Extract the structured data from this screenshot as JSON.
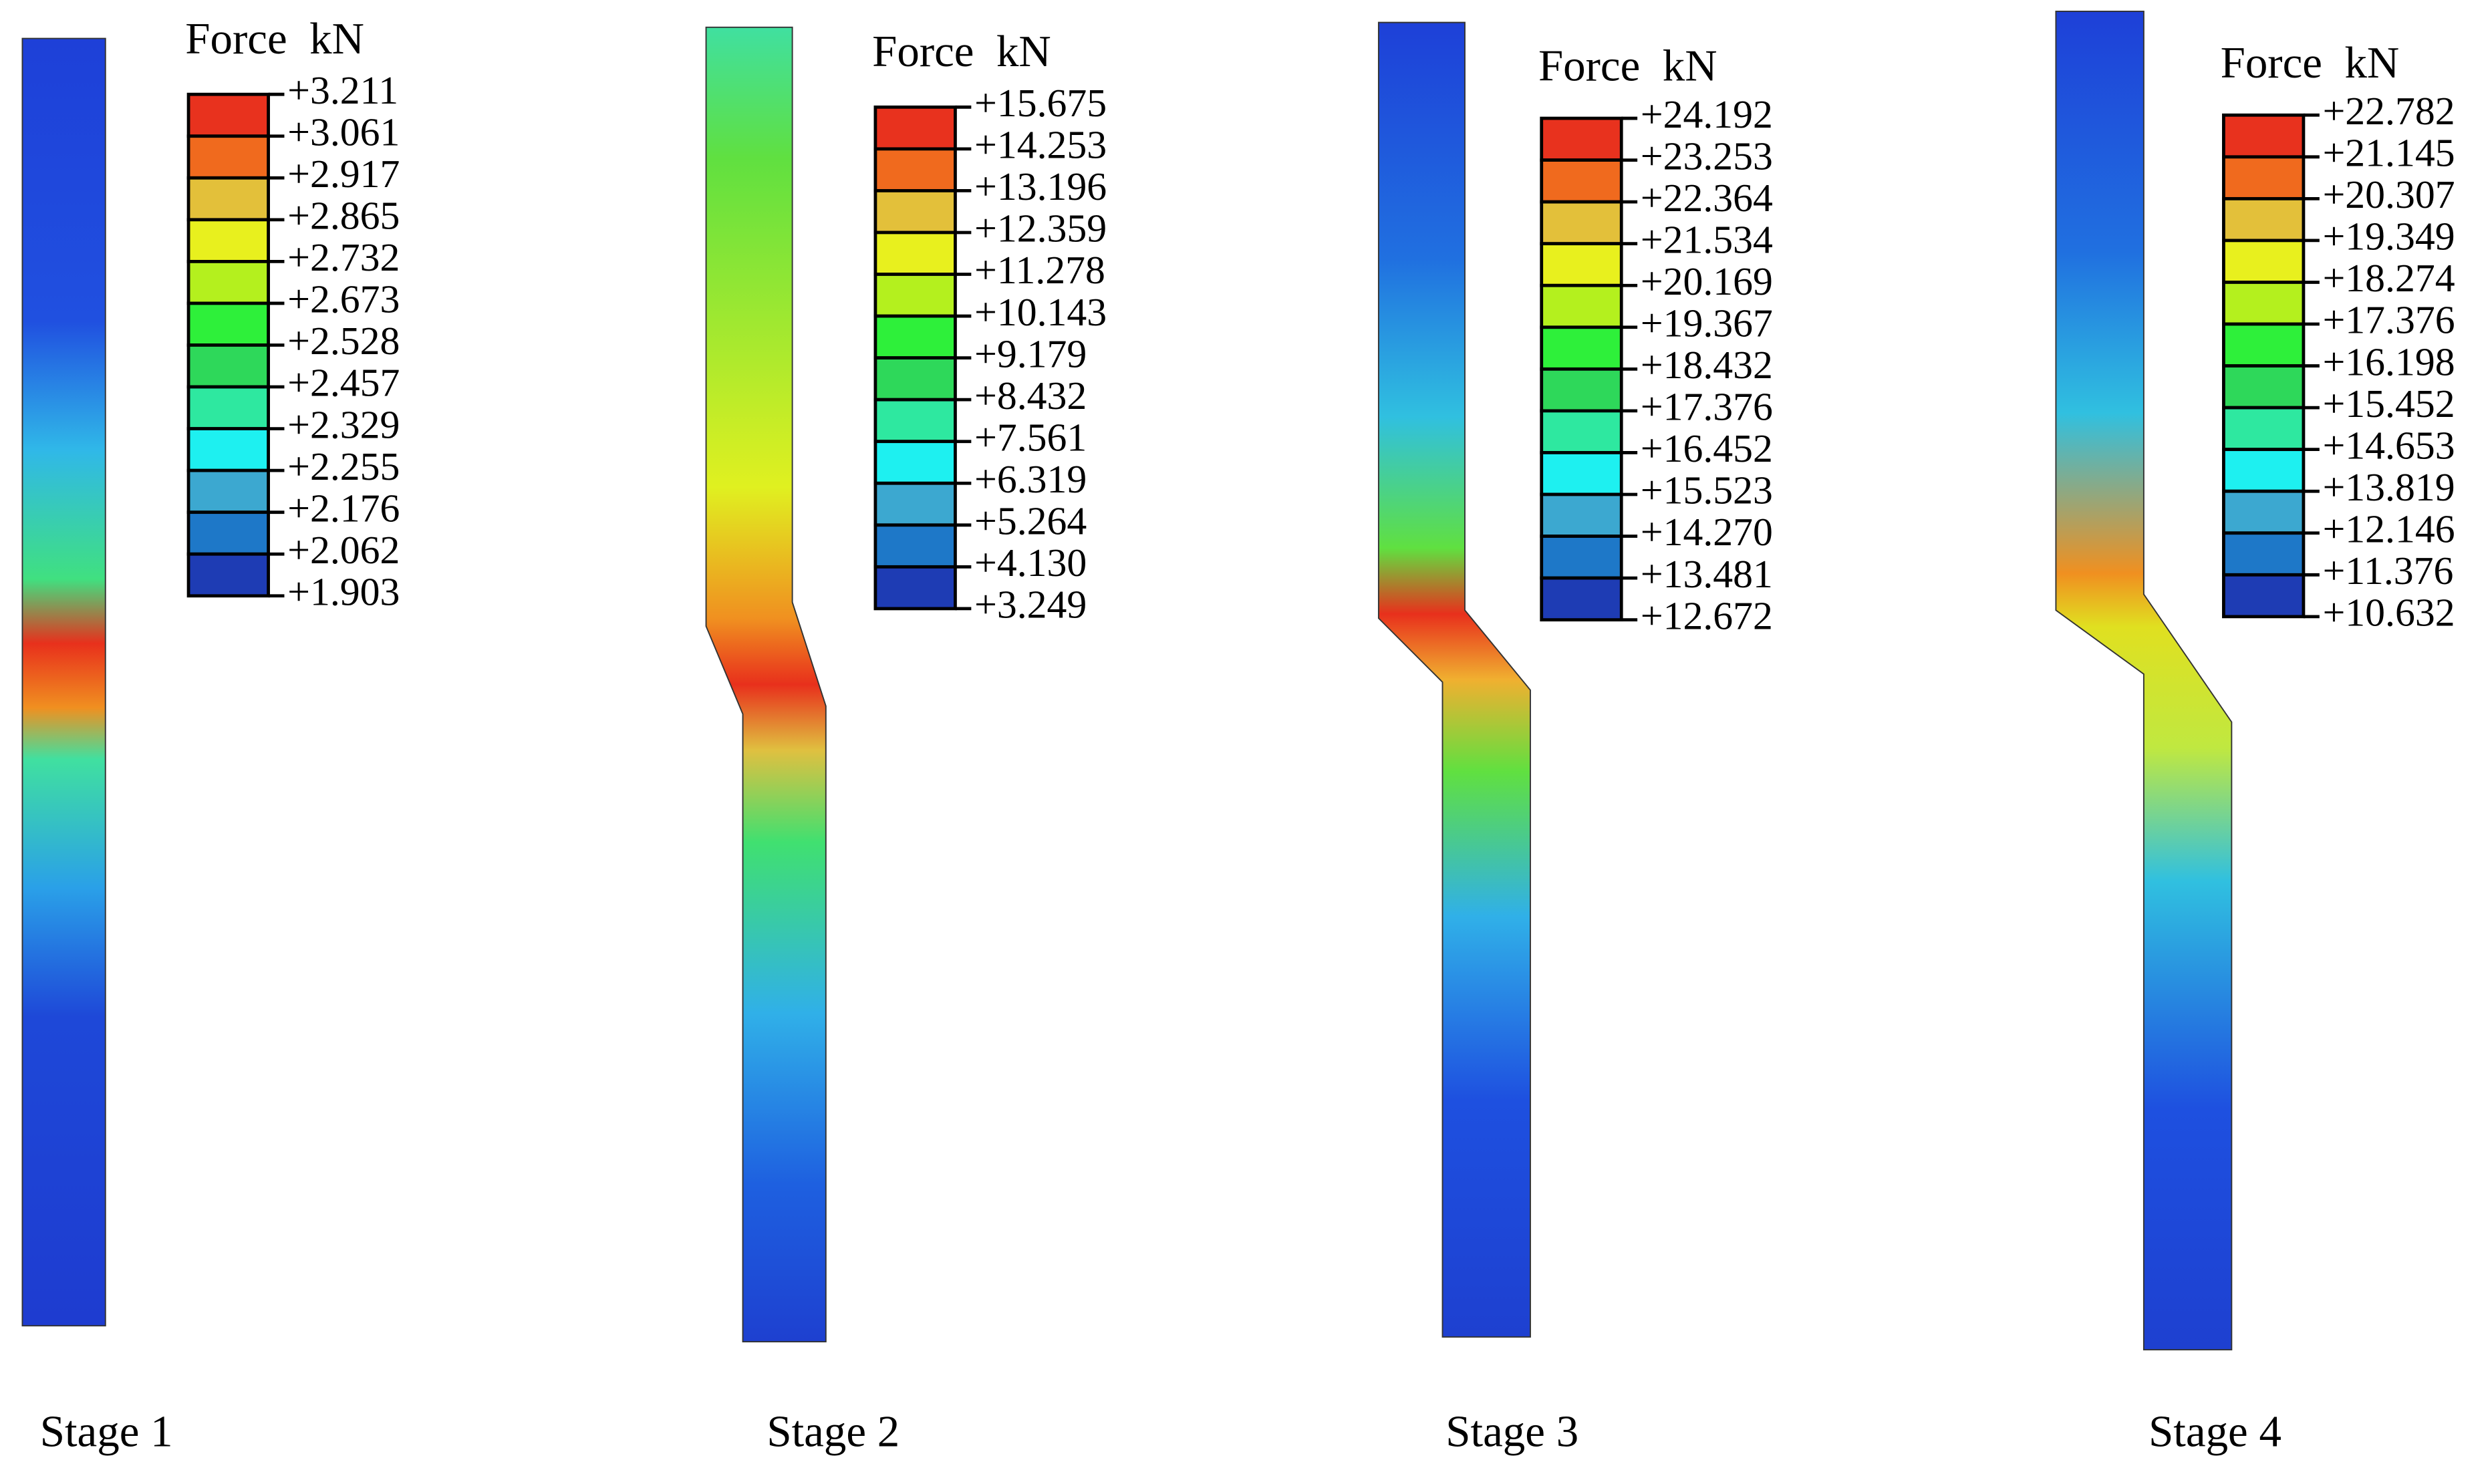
{
  "panels": [
    {
      "legend_title": "Force  kN",
      "legend_values": [
        "+3.211",
        "+3.061",
        "+2.917",
        "+2.865",
        "+2.732",
        "+2.673",
        "+2.528",
        "+2.457",
        "+2.329",
        "+2.255",
        "+2.176",
        "+2.062",
        "+1.903"
      ],
      "stage": "Stage 1"
    },
    {
      "legend_title": "Force  kN",
      "legend_values": [
        "+15.675",
        "+14.253",
        "+13.196",
        "+12.359",
        "+11.278",
        "+10.143",
        "+9.179",
        "+8.432",
        "+7.561",
        "+6.319",
        "+5.264",
        "+4.130",
        "+3.249"
      ],
      "stage": "Stage 2"
    },
    {
      "legend_title": "Force  kN",
      "legend_values": [
        "+24.192",
        "+23.253",
        "+22.364",
        "+21.534",
        "+20.169",
        "+19.367",
        "+18.432",
        "+17.376",
        "+16.452",
        "+15.523",
        "+14.270",
        "+13.481",
        "+12.672"
      ],
      "stage": "Stage 3"
    },
    {
      "legend_title": "Force  kN",
      "legend_values": [
        "+22.782",
        "+21.145",
        "+20.307",
        "+19.349",
        "+18.274",
        "+17.376",
        "+16.198",
        "+15.452",
        "+14.653",
        "+13.819",
        "+12.146",
        "+11.376",
        "+10.632"
      ],
      "stage": "Stage 4"
    }
  ]
}
